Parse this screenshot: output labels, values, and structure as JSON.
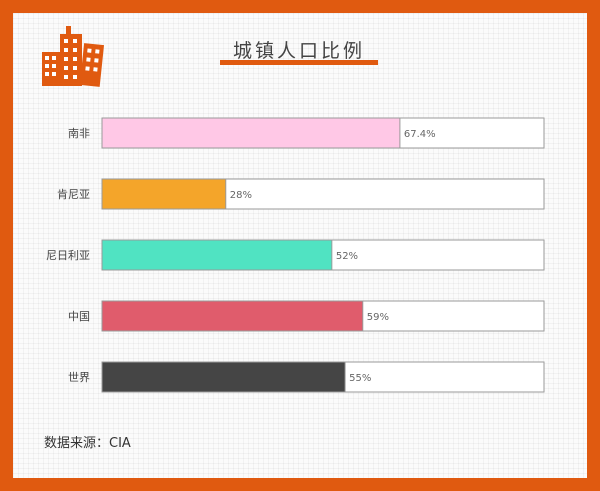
{
  "title": "城镇人口比例",
  "source": "数据来源：CIA",
  "chart_data": {
    "type": "bar",
    "orientation": "horizontal",
    "title": "城镇人口比例",
    "categories": [
      "南非",
      "肯尼亚",
      "尼日利亚",
      "中国",
      "世界"
    ],
    "values": [
      67.4,
      28,
      52,
      59,
      55
    ],
    "value_labels": [
      "67.4%",
      "28%",
      "52%",
      "59%",
      "55%"
    ],
    "colors": [
      "#ffc8e6",
      "#f4a52a",
      "#50e3c2",
      "#e05c6c",
      "#454545"
    ],
    "xlim": [
      0,
      100
    ],
    "grid": false,
    "legend": "none"
  },
  "colors": {
    "frame": "#e05a10",
    "track_border": "#9a9a9a"
  }
}
